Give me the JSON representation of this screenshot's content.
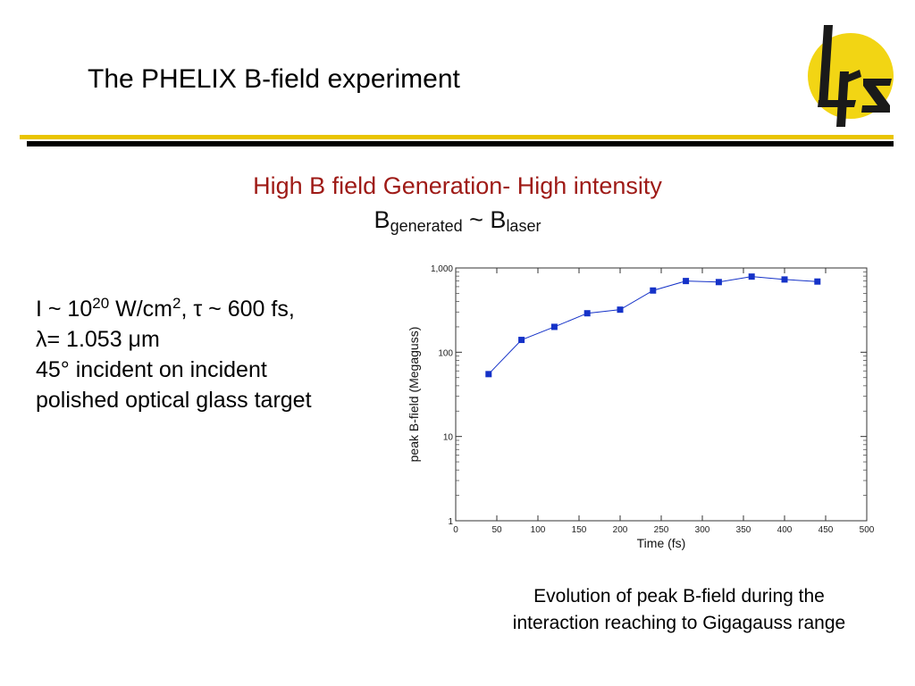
{
  "slide": {
    "title": "The PHELIX B-field experiment",
    "headline": "High B field Generation- High intensity",
    "formula": {
      "b1": "B",
      "sub1": "generated",
      "tilde": " ~ ",
      "b2": "B",
      "sub2": "laser"
    },
    "params": {
      "line1_a": "I ~ 10",
      "line1_exp": "20",
      "line1_b": " W/cm",
      "line1_exp2": "2",
      "line1_c": ",  τ ~ 600 fs,",
      "line2": "λ= 1.053 μm",
      "line3": "45° incident on incident",
      "line4": "polished optical glass target"
    },
    "caption_line1": "Evolution of peak B-field during the",
    "caption_line2": "interaction reaching to Gigagauss range",
    "logo": {
      "text": "lrz",
      "circle_color": "#f2d514",
      "glyph_color": "#1a1a1a"
    },
    "colors": {
      "headline": "#9e1a16",
      "rule_dark": "#000000",
      "rule_accent": "#e9c400"
    }
  },
  "chart_data": {
    "type": "line",
    "xlabel": "Time (fs)",
    "ylabel": "peak B-field (Megaguss)",
    "xlim": [
      0,
      500
    ],
    "ylim": [
      1,
      1000
    ],
    "yscale": "log",
    "xticks": [
      0,
      50,
      100,
      150,
      200,
      250,
      300,
      350,
      400,
      450,
      500
    ],
    "yticks": [
      1,
      10,
      100,
      1000
    ],
    "ytick_labels": [
      "1",
      "10",
      "100",
      "1,000"
    ],
    "grid": false,
    "series": [
      {
        "color": "#1532c8",
        "x": [
          40,
          80,
          120,
          160,
          200,
          240,
          280,
          320,
          360,
          400,
          440
        ],
        "y": [
          55,
          140,
          200,
          290,
          320,
          540,
          700,
          680,
          790,
          730,
          690
        ]
      }
    ]
  }
}
